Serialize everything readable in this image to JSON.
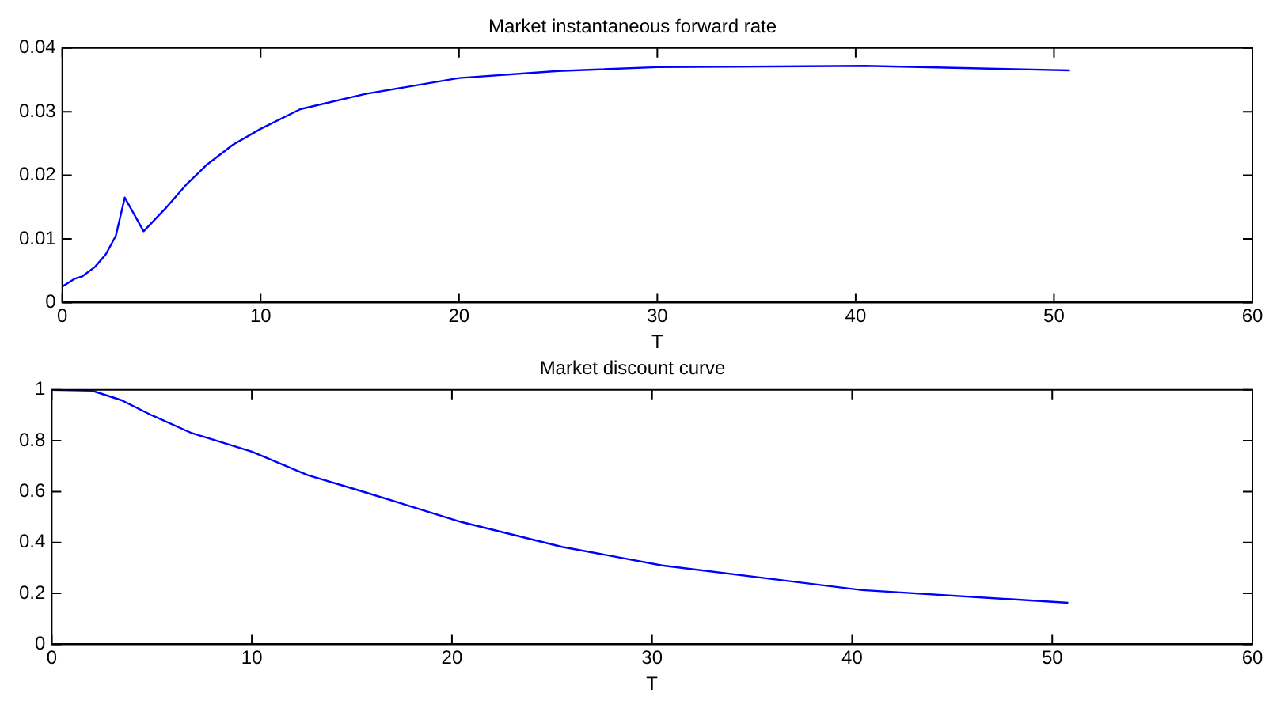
{
  "chart_data": [
    {
      "type": "line",
      "title": "Market instantaneous forward rate",
      "xlabel": "T",
      "xlim": [
        0,
        60
      ],
      "xticks": [
        0,
        10,
        20,
        30,
        40,
        50,
        60
      ],
      "ylim": [
        0,
        0.04
      ],
      "yticks": [
        0,
        0.01,
        0.02,
        0.03,
        0.04
      ],
      "grid": false,
      "legend": false,
      "marker": "none",
      "line_style": "solid",
      "series": [
        {
          "color": "#0000ff",
          "x": [
            0,
            0.6,
            1,
            1.65,
            2.2,
            2.7,
            3.15,
            4.1,
            5.26,
            6.3,
            7.3,
            8.6,
            10,
            12,
            15.3,
            20,
            25,
            30,
            40.5,
            50.8
          ],
          "values": [
            0.0025,
            0.0037,
            0.0041,
            0.0056,
            0.0076,
            0.0105,
            0.0165,
            0.0112,
            0.015,
            0.0187,
            0.0217,
            0.0248,
            0.0273,
            0.0304,
            0.0328,
            0.0353,
            0.0364,
            0.037,
            0.0372,
            0.0365
          ]
        }
      ]
    },
    {
      "type": "line",
      "title": "Market discount curve",
      "xlabel": "T",
      "xlim": [
        0,
        60
      ],
      "xticks": [
        0,
        10,
        20,
        30,
        40,
        50,
        60
      ],
      "ylim": [
        0,
        1
      ],
      "yticks": [
        0,
        0.2,
        0.4,
        0.6,
        0.8,
        1
      ],
      "grid": false,
      "legend": false,
      "marker": "none",
      "line_style": "solid",
      "series": [
        {
          "color": "#0000ff",
          "x": [
            0,
            2,
            3.5,
            5,
            7,
            10,
            12.8,
            15.3,
            20.5,
            25.5,
            30.5,
            40.5,
            50.8
          ],
          "values": [
            1,
            0.997,
            0.959,
            0.9,
            0.83,
            0.757,
            0.665,
            0.606,
            0.48,
            0.383,
            0.31,
            0.213,
            0.163
          ]
        }
      ]
    }
  ]
}
